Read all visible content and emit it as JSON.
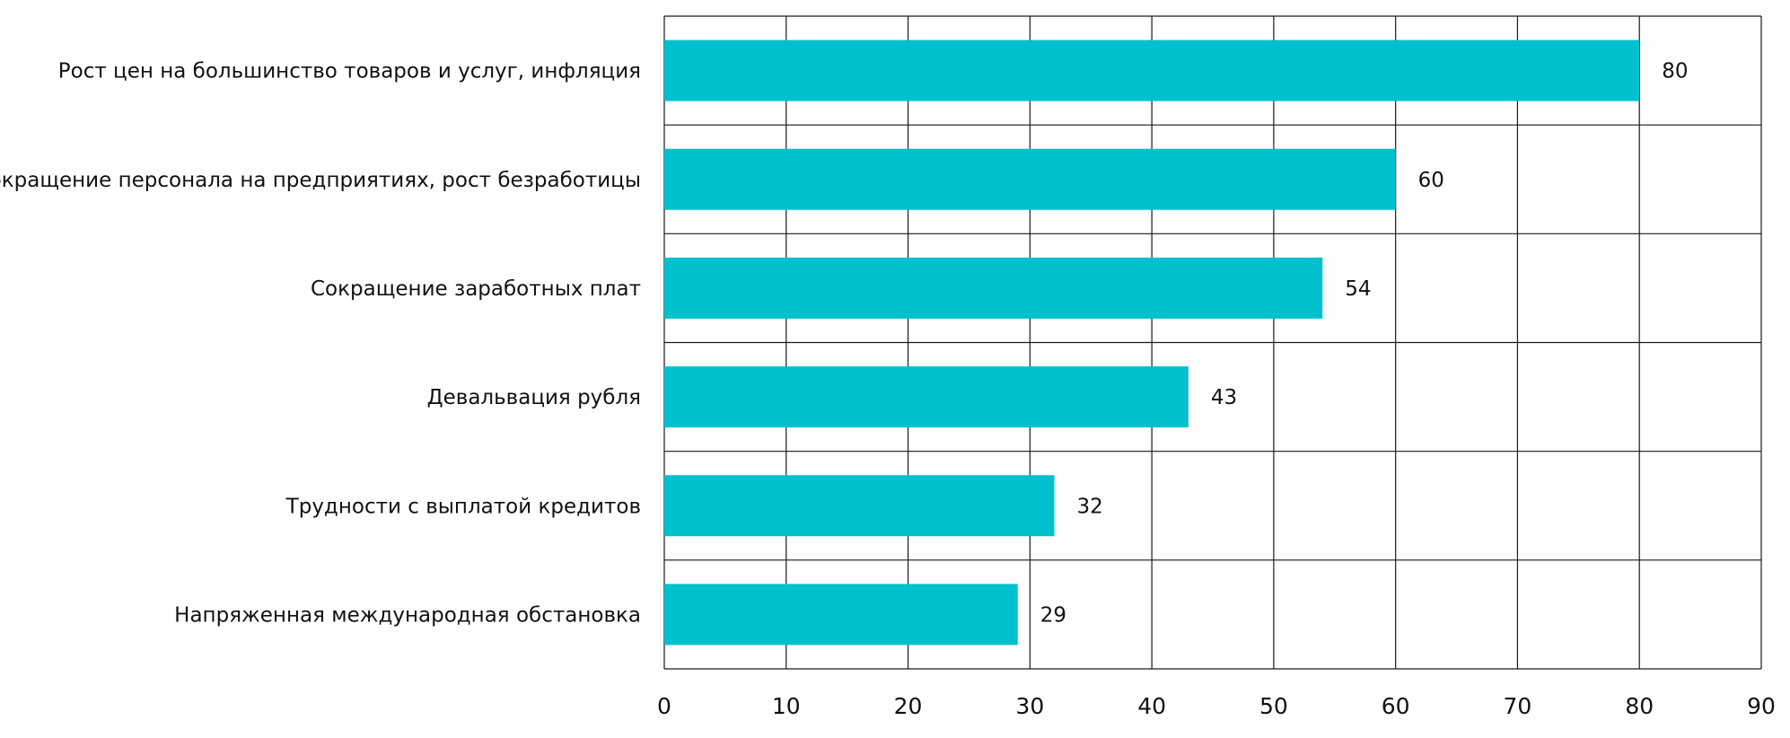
{
  "chart_data": {
    "type": "bar",
    "orientation": "horizontal",
    "categories": [
      "Рост цен на большинство товаров и услуг, инфляция",
      "Сокращение персонала на предприятиях, рост безработицы",
      "Сокращение заработных плат",
      "Девальвация рубля",
      "Трудности с выплатой кредитов",
      "Напряженная международная обстановка"
    ],
    "values": [
      80,
      60,
      54,
      43,
      32,
      29
    ],
    "value_labels": [
      "80",
      "60",
      "54",
      "43",
      "32",
      "29"
    ],
    "xlim": [
      0,
      90
    ],
    "xticks": [
      0,
      10,
      20,
      30,
      40,
      50,
      60,
      70,
      80,
      90
    ],
    "xtick_labels": [
      "0",
      "10",
      "20",
      "30",
      "40",
      "50",
      "60",
      "70",
      "80",
      "90"
    ],
    "title": "",
    "xlabel": "",
    "ylabel": "",
    "grid": true,
    "bar_color": "#00c0cd"
  }
}
